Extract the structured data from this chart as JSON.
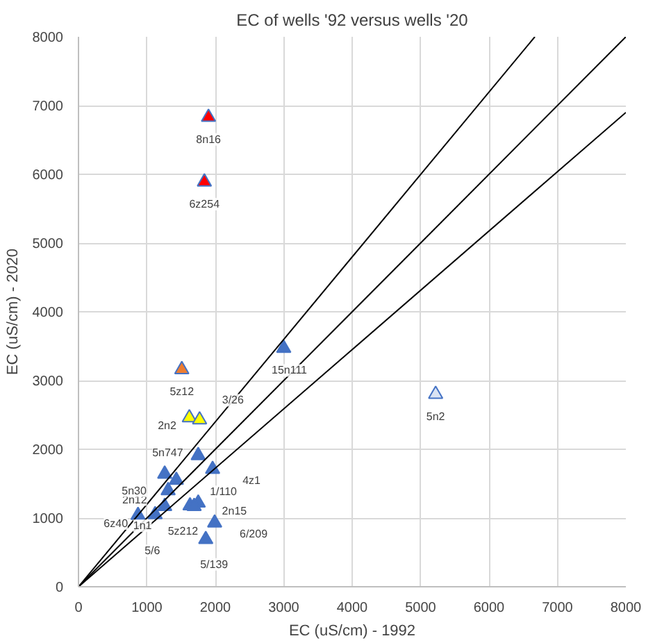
{
  "chart_data": {
    "type": "scatter",
    "title": "EC of wells '92 versus wells '20",
    "xlabel": "EC (uS/cm) - 1992",
    "ylabel": "EC (uS/cm) - 2020",
    "xlim": [
      0,
      8000
    ],
    "ylim": [
      0,
      8000
    ],
    "xticks": [
      0,
      1000,
      2000,
      3000,
      4000,
      5000,
      6000,
      7000,
      8000
    ],
    "yticks": [
      0,
      1000,
      2000,
      3000,
      4000,
      5000,
      6000,
      7000,
      8000
    ],
    "grid": true,
    "marker": "triangle",
    "series": [
      {
        "color": "#4472c4",
        "x": [
          1750,
          1260,
          1430,
          1960,
          1310,
          1260,
          1120,
          870,
          1630,
          1750,
          1690,
          1990,
          1860,
          3000
        ],
        "values": [
          1910,
          1640,
          1550,
          1710,
          1400,
          1170,
          1050,
          1040,
          1180,
          1220,
          1170,
          930,
          690,
          3470
        ]
      },
      {
        "color": "#ff0000",
        "x": [
          1900,
          1840
        ],
        "values": [
          6830,
          5890
        ]
      },
      {
        "color": "#ed7d31",
        "x": [
          1510
        ],
        "values": [
          3160
        ]
      },
      {
        "color": "#ffff00",
        "x": [
          1620,
          1770
        ],
        "values": [
          2460,
          2430
        ]
      },
      {
        "color": "#dae3f3",
        "x": [
          5220
        ],
        "values": [
          2800
        ]
      },
      {
        "type": "line",
        "marker": "none",
        "color": "#000000",
        "x": [
          0,
          6670
        ],
        "values": [
          0,
          8000
        ]
      },
      {
        "type": "line",
        "marker": "none",
        "color": "#000000",
        "x": [
          0,
          8000
        ],
        "values": [
          0,
          8000
        ]
      },
      {
        "type": "line",
        "marker": "none",
        "color": "#000000",
        "x": [
          0,
          8000
        ],
        "values": [
          0,
          6900
        ]
      }
    ],
    "annotations": [
      {
        "text": "8n16",
        "x": 1900,
        "y": 6830
      },
      {
        "text": "6z254",
        "x": 1840,
        "y": 5890
      },
      {
        "text": "5z12",
        "x": 1510,
        "y": 3160
      },
      {
        "text": "2n2",
        "x": 1620,
        "y": 2460
      },
      {
        "text": "3/26",
        "x": 1770,
        "y": 2430
      },
      {
        "text": "15n111",
        "x": 3000,
        "y": 3470
      },
      {
        "text": "5n2",
        "x": 5220,
        "y": 2800
      },
      {
        "text": "5n747",
        "x": 1750,
        "y": 1910
      },
      {
        "text": "2n12",
        "x": 1430,
        "y": 1550
      },
      {
        "text": "4z1",
        "x": 1960,
        "y": 1710
      },
      {
        "text": "5n30",
        "x": 1260,
        "y": 1640
      },
      {
        "text": "1/110",
        "x": 1630,
        "y": 1180
      },
      {
        "text": "2n15",
        "x": 1750,
        "y": 1220
      },
      {
        "text": "6z40",
        "x": 870,
        "y": 1040
      },
      {
        "text": "1n1",
        "x": 1260,
        "y": 1170
      },
      {
        "text": "5z212",
        "x": 1690,
        "y": 1170
      },
      {
        "text": "5/6",
        "x": 1120,
        "y": 1050
      },
      {
        "text": "6/209",
        "x": 1990,
        "y": 930
      },
      {
        "text": "5/139",
        "x": 1860,
        "y": 690
      }
    ]
  }
}
